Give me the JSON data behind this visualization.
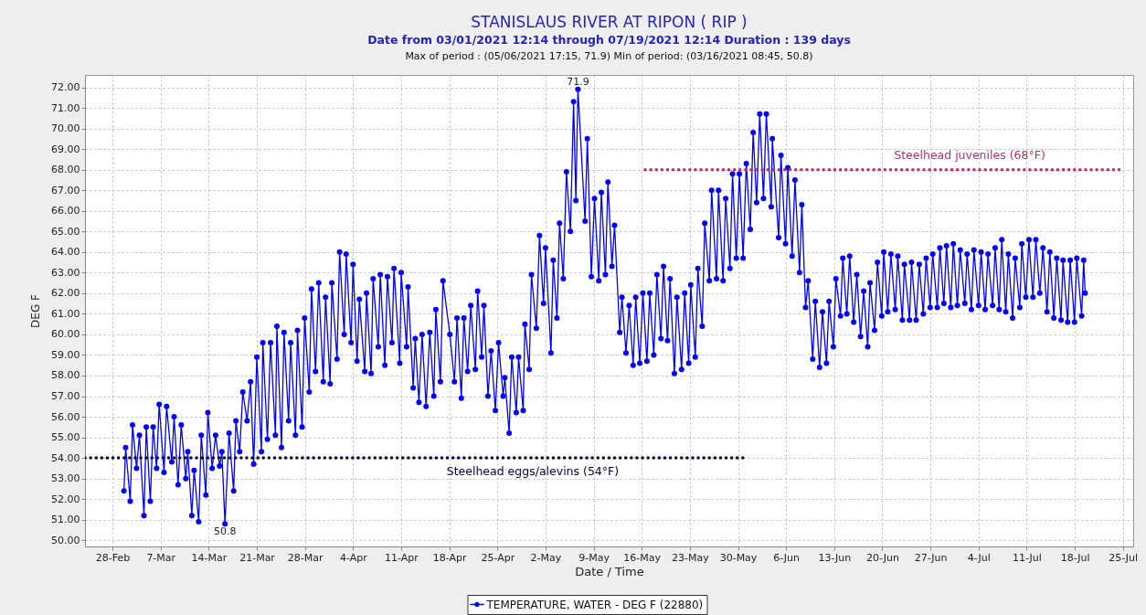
{
  "chart_data": {
    "type": "line",
    "title": "STANISLAUS RIVER AT RIPON ( RIP )",
    "subtitle": "Date from 03/01/2021 12:14 through 07/19/2021 12:14 Duration : 139 days",
    "xlabel": "Date / Time",
    "ylabel": "DEG F",
    "annotations": [
      "Max of period : (05/06/2021 17:15, 71.9)  Min of period: (03/16/2021 08:45,  50.8)",
      {
        "text": "71.9",
        "x": "2021-05-06T17:15",
        "y": 71.9
      },
      {
        "text": "50.8",
        "x": "2021-03-16T08:45",
        "y": 50.8
      }
    ],
    "x": [
      "2021-03-01T16:00",
      "2021-03-01T22:00",
      "2021-03-02T14:00",
      "2021-03-02T22:00",
      "2021-03-03T12:00",
      "2021-03-03T22:00",
      "2021-03-04T14:00",
      "2021-03-04T22:00",
      "2021-03-05T12:00",
      "2021-03-05T22:00",
      "2021-03-06T10:00",
      "2021-03-06T19:00",
      "2021-03-07T12:00",
      "2021-03-07T21:00",
      "2021-03-08T15:00",
      "2021-03-08T23:00",
      "2021-03-09T13:00",
      "2021-03-10T00:00",
      "2021-03-10T16:00",
      "2021-03-10T23:00",
      "2021-03-11T13:00",
      "2021-03-11T21:00",
      "2021-03-12T13:00",
      "2021-03-12T22:00",
      "2021-03-13T14:00",
      "2021-03-13T21:00",
      "2021-03-14T12:00",
      "2021-03-15T00:00",
      "2021-03-15T14:00",
      "2021-03-15T22:00",
      "2021-03-16T08:45",
      "2021-03-16T23:00",
      "2021-03-17T15:00",
      "2021-03-17T23:00",
      "2021-03-18T12:00",
      "2021-03-18T23:00",
      "2021-03-19T14:00",
      "2021-03-20T02:00",
      "2021-03-20T13:00",
      "2021-03-21T00:00",
      "2021-03-21T16:00",
      "2021-03-21T21:00",
      "2021-03-22T13:00",
      "2021-03-23T00:00",
      "2021-03-23T17:00",
      "2021-03-23T22:00",
      "2021-03-24T14:00",
      "2021-03-24T23:00",
      "2021-03-25T15:00",
      "2021-03-25T22:00",
      "2021-03-26T15:00",
      "2021-03-26T22:00",
      "2021-03-27T14:00",
      "2021-03-27T23:00",
      "2021-03-28T15:00",
      "2021-03-28T23:00",
      "2021-03-29T13:00",
      "2021-03-30T00:00",
      "2021-03-30T16:00",
      "2021-03-31T00:00",
      "2021-03-31T16:00",
      "2021-03-31T22:00",
      "2021-04-01T16:00",
      "2021-04-02T01:00",
      "2021-04-02T17:00",
      "2021-04-03T00:00",
      "2021-04-03T17:00",
      "2021-04-04T00:00",
      "2021-04-04T14:00",
      "2021-04-04T22:00",
      "2021-04-05T17:00",
      "2021-04-05T23:00",
      "2021-04-06T15:00",
      "2021-04-06T22:00",
      "2021-04-07T16:00",
      "2021-04-07T23:00",
      "2021-04-08T15:00",
      "2021-04-09T00:00",
      "2021-04-09T16:00",
      "2021-04-09T23:00",
      "2021-04-10T19:00",
      "2021-04-11T00:00",
      "2021-04-11T19:00",
      "2021-04-12T00:00",
      "2021-04-12T18:00",
      "2021-04-13T01:00",
      "2021-04-13T14:00",
      "2021-04-14T01:00",
      "2021-04-14T15:00",
      "2021-04-15T04:00",
      "2021-04-15T18:00",
      "2021-04-16T01:00",
      "2021-04-16T17:00",
      "2021-04-17T02:00",
      "2021-04-18T02:00",
      "2021-04-18T18:00",
      "2021-04-19T03:00",
      "2021-04-19T18:00",
      "2021-04-20T03:00",
      "2021-04-20T16:00",
      "2021-04-21T03:00",
      "2021-04-21T19:00",
      "2021-04-22T03:00",
      "2021-04-22T17:00",
      "2021-04-23T01:00",
      "2021-04-23T15:00",
      "2021-04-24T02:00",
      "2021-04-24T17:00",
      "2021-04-25T04:00",
      "2021-04-25T20:00",
      "2021-04-26T02:00",
      "2021-04-26T17:00",
      "2021-04-27T02:00",
      "2021-04-27T18:00",
      "2021-04-28T02:00",
      "2021-04-28T18:00",
      "2021-04-29T00:00",
      "2021-04-29T15:00",
      "2021-04-29T23:00",
      "2021-04-30T16:00",
      "2021-05-01T03:00",
      "2021-05-01T17:00",
      "2021-05-02T00:00",
      "2021-05-02T19:00",
      "2021-05-03T03:00",
      "2021-05-03T16:00",
      "2021-05-04T01:00",
      "2021-05-04T14:00",
      "2021-05-05T01:00",
      "2021-05-05T15:00",
      "2021-05-06T02:00",
      "2021-05-06T10:00",
      "2021-05-06T17:15",
      "2021-05-07T18:00",
      "2021-05-08T02:00",
      "2021-05-08T16:00",
      "2021-05-09T03:00",
      "2021-05-09T18:00",
      "2021-05-10T03:00",
      "2021-05-10T17:00",
      "2021-05-11T02:00",
      "2021-05-11T16:00",
      "2021-05-12T01:00",
      "2021-05-12T19:00",
      "2021-05-13T03:00",
      "2021-05-13T17:00",
      "2021-05-14T04:00",
      "2021-05-14T18:00",
      "2021-05-15T03:00",
      "2021-05-15T17:00",
      "2021-05-16T04:00",
      "2021-05-16T18:00",
      "2021-05-17T04:00",
      "2021-05-17T18:00",
      "2021-05-18T05:00",
      "2021-05-18T19:00",
      "2021-05-19T04:00",
      "2021-05-19T18:00",
      "2021-05-20T03:00",
      "2021-05-20T18:00",
      "2021-05-21T03:00",
      "2021-05-21T19:00",
      "2021-05-22T06:00",
      "2021-05-22T20:00",
      "2021-05-23T03:00",
      "2021-05-23T19:00",
      "2021-05-24T04:00",
      "2021-05-24T19:00",
      "2021-05-25T04:00",
      "2021-05-25T20:00",
      "2021-05-26T04:00",
      "2021-05-26T21:00",
      "2021-05-27T04:00",
      "2021-05-27T20:00",
      "2021-05-28T05:00",
      "2021-05-28T20:00",
      "2021-05-29T05:00",
      "2021-05-29T18:00",
      "2021-05-30T05:00",
      "2021-05-30T18:00",
      "2021-05-31T05:00",
      "2021-05-31T19:00",
      "2021-06-01T05:00",
      "2021-06-01T17:00",
      "2021-06-02T04:00",
      "2021-06-02T17:00",
      "2021-06-03T03:00",
      "2021-06-03T20:00",
      "2021-06-04T00:00",
      "2021-06-04T22:00",
      "2021-06-05T06:00",
      "2021-06-05T22:00",
      "2021-06-06T06:00",
      "2021-06-06T21:00",
      "2021-06-07T07:00",
      "2021-06-07T23:00",
      "2021-06-08T07:00",
      "2021-06-08T20:00",
      "2021-06-09T05:00",
      "2021-06-09T21:00",
      "2021-06-10T06:00",
      "2021-06-10T21:00",
      "2021-06-11T07:00",
      "2021-06-11T21:00",
      "2021-06-12T06:00",
      "2021-06-12T21:00",
      "2021-06-13T06:00",
      "2021-06-13T22:00",
      "2021-06-14T06:00",
      "2021-06-14T20:00",
      "2021-06-15T06:00",
      "2021-06-15T20:00",
      "2021-06-16T07:00",
      "2021-06-16T20:00",
      "2021-06-17T07:00",
      "2021-06-17T21:00",
      "2021-06-18T05:00",
      "2021-06-18T21:00",
      "2021-06-19T07:00",
      "2021-06-19T22:00",
      "2021-06-20T05:00",
      "2021-06-20T19:00",
      "2021-06-21T06:00",
      "2021-06-21T21:00",
      "2021-06-22T06:00",
      "2021-06-22T22:00",
      "2021-06-23T05:00",
      "2021-06-23T23:00",
      "2021-06-24T06:00",
      "2021-06-24T22:00",
      "2021-06-25T09:00",
      "2021-06-25T23:00",
      "2021-06-26T09:00",
      "2021-06-26T23:00",
      "2021-06-27T08:00",
      "2021-06-28T00:00",
      "2021-06-28T09:00",
      "2021-06-28T23:00",
      "2021-06-29T08:00",
      "2021-06-29T23:00",
      "2021-06-30T08:00",
      "2021-06-30T22:00",
      "2021-07-01T08:00",
      "2021-07-02T00:00",
      "2021-07-02T08:00",
      "2021-07-02T23:00",
      "2021-07-03T08:00",
      "2021-07-04T00:00",
      "2021-07-04T09:00",
      "2021-07-04T23:00",
      "2021-07-05T09:00",
      "2021-07-06T01:00",
      "2021-07-06T10:00",
      "2021-07-07T00:00",
      "2021-07-07T09:00",
      "2021-07-07T23:00",
      "2021-07-08T08:00",
      "2021-07-08T23:00",
      "2021-07-09T08:00",
      "2021-07-10T00:00",
      "2021-07-10T07:00",
      "2021-07-10T21:00",
      "2021-07-11T08:00",
      "2021-07-11T22:00",
      "2021-07-12T08:00",
      "2021-07-12T22:00",
      "2021-07-13T09:00",
      "2021-07-13T23:00",
      "2021-07-14T09:00",
      "2021-07-14T23:00",
      "2021-07-15T09:00",
      "2021-07-16T00:00",
      "2021-07-16T07:00",
      "2021-07-16T23:00",
      "2021-07-17T08:00",
      "2021-07-17T23:00",
      "2021-07-18T07:00",
      "2021-07-19T00:00",
      "2021-07-19T07:00",
      "2021-07-19T12:14"
    ],
    "series": [
      {
        "name": "TEMPERATURE, WATER - DEG F (22880)",
        "color": "#0000ff",
        "values": [
          52.4,
          54.5,
          51.9,
          55.6,
          53.5,
          55.1,
          51.2,
          55.5,
          51.9,
          55.5,
          53.5,
          56.6,
          53.3,
          56.5,
          53.8,
          56.0,
          52.7,
          55.6,
          53.0,
          54.3,
          51.2,
          53.4,
          50.9,
          55.1,
          52.2,
          56.2,
          53.5,
          55.1,
          53.6,
          54.3,
          50.8,
          55.2,
          52.4,
          55.8,
          54.3,
          57.2,
          55.8,
          57.7,
          53.7,
          58.9,
          54.3,
          59.6,
          54.9,
          59.6,
          55.1,
          60.4,
          54.5,
          60.1,
          55.8,
          59.6,
          55.1,
          60.2,
          55.5,
          60.8,
          57.2,
          62.2,
          58.2,
          62.5,
          57.7,
          61.8,
          57.6,
          62.5,
          58.8,
          64.0,
          60.0,
          63.9,
          59.6,
          63.4,
          58.7,
          61.7,
          58.2,
          62.0,
          58.1,
          62.7,
          59.4,
          62.9,
          58.5,
          62.8,
          59.6,
          63.2,
          58.6,
          63.0,
          59.4,
          62.3,
          57.4,
          59.8,
          56.7,
          60.0,
          56.5,
          60.1,
          57.0,
          61.2,
          57.7,
          62.6,
          60.0,
          57.7,
          60.8,
          56.9,
          60.8,
          58.2,
          61.4,
          58.3,
          62.1,
          58.9,
          61.4,
          57.0,
          59.2,
          56.3,
          59.6,
          57.0,
          57.9,
          55.2,
          58.9,
          56.2,
          58.9,
          56.3,
          60.5,
          58.3,
          62.9,
          60.3,
          64.8,
          61.5,
          64.2,
          59.1,
          63.6,
          60.8,
          65.4,
          62.7,
          67.9,
          65.0,
          71.3,
          66.5,
          71.9,
          65.5,
          69.5,
          62.8,
          66.6,
          62.6,
          66.9,
          62.9,
          67.4,
          63.3,
          65.3,
          60.1,
          61.8,
          59.1,
          61.4,
          58.5,
          61.8,
          58.6,
          62.0,
          58.7,
          62.0,
          59.0,
          62.9,
          59.8,
          63.3,
          59.7,
          62.7,
          58.1,
          61.8,
          58.3,
          62.0,
          58.6,
          62.4,
          58.9,
          63.2,
          60.4,
          65.4,
          62.6,
          67.0,
          62.7,
          67.0,
          62.6,
          66.6,
          63.2,
          67.8,
          63.7,
          67.8,
          63.7,
          68.3,
          65.1,
          69.8,
          66.4,
          70.7,
          66.6,
          70.7,
          66.2,
          69.5,
          64.7,
          68.7,
          64.4,
          68.1,
          63.8,
          67.5,
          63.0,
          66.3,
          61.3,
          62.6,
          58.8,
          61.6,
          58.4,
          61.1,
          58.6,
          61.6,
          59.4,
          62.7,
          60.9,
          63.7,
          61.0,
          63.8,
          60.6,
          62.9,
          59.9,
          62.1,
          59.4,
          62.5,
          60.2,
          63.5,
          60.9,
          64.0,
          61.1,
          63.9,
          61.2,
          63.8,
          60.7,
          63.4,
          60.7,
          63.5,
          60.7,
          63.4,
          61.0,
          63.7,
          61.3,
          63.9,
          61.3,
          64.2,
          61.5,
          64.3,
          61.3,
          64.4,
          61.4,
          64.1,
          61.5,
          63.9,
          61.2,
          64.1,
          61.4,
          64.0,
          61.2,
          63.9,
          61.4,
          64.2,
          61.2,
          64.6,
          61.1,
          63.9,
          60.8,
          63.7,
          61.3,
          64.4,
          61.8,
          64.6,
          61.8,
          64.6,
          62.0,
          64.2,
          61.1,
          64.0,
          60.8,
          63.7,
          60.7,
          63.6,
          60.6,
          63.6,
          60.6,
          63.7,
          60.9,
          63.6,
          62.0
        ]
      },
      {
        "name": "Steelhead eggs/alevins (54°F)",
        "color": "#00003a",
        "x": [
          "2021-02-24",
          "2021-05-30T19:00"
        ],
        "values": [
          54,
          54
        ],
        "line_style": "dotted",
        "marker": "none"
      },
      {
        "name": "Steelhead juveniles (68°F)",
        "color": "#b5306e",
        "x": [
          "2021-05-16T12:00",
          "2021-07-24T22:00"
        ],
        "values": [
          68,
          68
        ],
        "line_style": "dotted",
        "marker": "none"
      }
    ],
    "xlim": [
      "2021-02-24",
      "2021-07-26T12:00"
    ],
    "xticks": [
      {
        "value": "2021-02-28",
        "label": "28-Feb"
      },
      {
        "value": "2021-03-07",
        "label": "7-Mar"
      },
      {
        "value": "2021-03-14",
        "label": "14-Mar"
      },
      {
        "value": "2021-03-21",
        "label": "21-Mar"
      },
      {
        "value": "2021-03-28",
        "label": "28-Mar"
      },
      {
        "value": "2021-04-04",
        "label": "4-Apr"
      },
      {
        "value": "2021-04-11",
        "label": "11-Apr"
      },
      {
        "value": "2021-04-18",
        "label": "18-Apr"
      },
      {
        "value": "2021-04-25",
        "label": "25-Apr"
      },
      {
        "value": "2021-05-02",
        "label": "2-May"
      },
      {
        "value": "2021-05-09",
        "label": "9-May"
      },
      {
        "value": "2021-05-16",
        "label": "16-May"
      },
      {
        "value": "2021-05-23",
        "label": "23-May"
      },
      {
        "value": "2021-05-30",
        "label": "30-May"
      },
      {
        "value": "2021-06-06",
        "label": "6-Jun"
      },
      {
        "value": "2021-06-13",
        "label": "13-Jun"
      },
      {
        "value": "2021-06-20",
        "label": "20-Jun"
      },
      {
        "value": "2021-06-27",
        "label": "27-Jun"
      },
      {
        "value": "2021-07-04",
        "label": "4-Jul"
      },
      {
        "value": "2021-07-11",
        "label": "11-Jul"
      },
      {
        "value": "2021-07-18",
        "label": "18-Jul"
      },
      {
        "value": "2021-07-25",
        "label": "25-Jul"
      }
    ],
    "ylim": [
      49.7,
      72.6
    ],
    "yticks": [
      {
        "value": 50,
        "label": "50.00"
      },
      {
        "value": 51,
        "label": "51.00"
      },
      {
        "value": 52,
        "label": "52.00"
      },
      {
        "value": 53,
        "label": "53.00"
      },
      {
        "value": 54,
        "label": "54.00"
      },
      {
        "value": 55,
        "label": "55.00"
      },
      {
        "value": 56,
        "label": "56.00"
      },
      {
        "value": 57,
        "label": "57.00"
      },
      {
        "value": 58,
        "label": "58.00"
      },
      {
        "value": 59,
        "label": "59.00"
      },
      {
        "value": 60,
        "label": "60.00"
      },
      {
        "value": 61,
        "label": "61.00"
      },
      {
        "value": 62,
        "label": "62.00"
      },
      {
        "value": 63,
        "label": "63.00"
      },
      {
        "value": 64,
        "label": "64.00"
      },
      {
        "value": 65,
        "label": "65.00"
      },
      {
        "value": 66,
        "label": "66.00"
      },
      {
        "value": 67,
        "label": "67.00"
      },
      {
        "value": 68,
        "label": "68.00"
      },
      {
        "value": 69,
        "label": "69.00"
      },
      {
        "value": 70,
        "label": "70.00"
      },
      {
        "value": 71,
        "label": "71.00"
      },
      {
        "value": 72,
        "label": "72.00"
      }
    ],
    "grid": true,
    "legend": "bottom",
    "marker": "circle"
  }
}
